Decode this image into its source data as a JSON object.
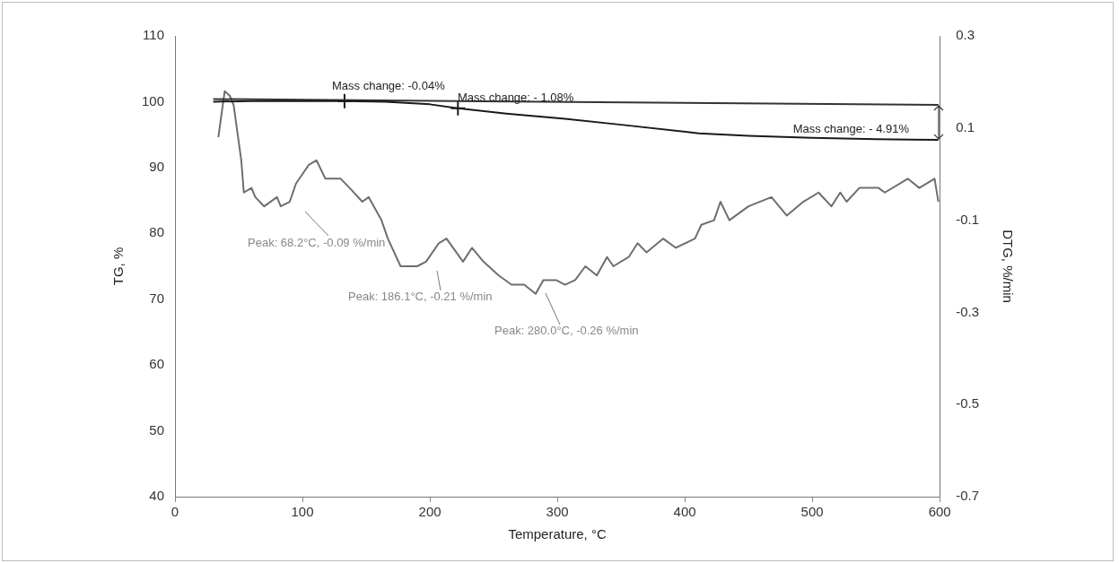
{
  "chart_data": {
    "type": "line",
    "xlabel": "Temperature, °C",
    "ylabel": "TG, %",
    "y2label": "DTG, %/min",
    "xlim": [
      0,
      600
    ],
    "xticks": [
      0,
      100,
      200,
      300,
      400,
      500,
      600
    ],
    "ylim": [
      40,
      110
    ],
    "yticks": [
      40,
      50,
      60,
      70,
      80,
      90,
      100,
      110
    ],
    "y2lim": [
      -0.7,
      0.3
    ],
    "y2ticks": [
      -0.7,
      -0.5,
      -0.3,
      -0.1,
      0.1,
      0.3
    ],
    "grid": false,
    "marker": "none",
    "line_style": "solid",
    "series": [
      {
        "color": "#1a1a1a",
        "x": [
          30,
          60,
          100,
          133,
          165,
          200,
          222,
          260,
          306,
          350,
          411,
          450,
          500,
          550,
          599
        ],
        "values": [
          100.0,
          100.1,
          100.1,
          100.1,
          100.0,
          99.6,
          99.0,
          98.2,
          97.4,
          96.5,
          95.2,
          94.8,
          94.5,
          94.3,
          94.2
        ]
      },
      {
        "color": "#333333",
        "x": [
          30,
          599
        ],
        "values": [
          100.4,
          99.5
        ]
      },
      {
        "type": "scatter",
        "marker": "cross",
        "color": "#1a1a1a",
        "x": [
          133,
          222
        ],
        "values": [
          100.1,
          99.0
        ]
      },
      {
        "axis": "y2",
        "color": "#6e6e6e",
        "x": [
          34,
          39,
          43,
          46,
          52,
          54,
          60,
          63,
          70,
          80,
          83,
          90,
          95,
          100,
          105,
          111,
          118,
          130,
          137,
          147,
          152,
          162,
          167,
          177,
          190,
          197,
          207,
          213,
          226,
          233,
          242,
          254,
          264,
          274,
          283,
          289,
          299,
          306,
          314,
          322,
          331,
          339,
          344,
          356,
          363,
          370,
          383,
          393,
          408,
          413,
          423,
          428,
          435,
          450,
          468,
          480,
          493,
          505,
          515,
          522,
          527,
          537,
          552,
          557,
          575,
          584,
          596,
          599
        ],
        "values": [
          0.08,
          0.18,
          0.17,
          0.15,
          0.03,
          -0.04,
          -0.03,
          -0.05,
          -0.07,
          -0.05,
          -0.07,
          -0.06,
          -0.02,
          0.0,
          0.02,
          0.03,
          -0.01,
          -0.01,
          -0.03,
          -0.06,
          -0.05,
          -0.1,
          -0.14,
          -0.2,
          -0.2,
          -0.19,
          -0.15,
          -0.14,
          -0.19,
          -0.16,
          -0.19,
          -0.22,
          -0.24,
          -0.24,
          -0.26,
          -0.23,
          -0.23,
          -0.24,
          -0.23,
          -0.2,
          -0.22,
          -0.18,
          -0.2,
          -0.18,
          -0.15,
          -0.17,
          -0.14,
          -0.16,
          -0.14,
          -0.11,
          -0.1,
          -0.06,
          -0.1,
          -0.07,
          -0.05,
          -0.09,
          -0.06,
          -0.04,
          -0.07,
          -0.04,
          -0.06,
          -0.03,
          -0.03,
          -0.04,
          -0.01,
          -0.03,
          -0.01,
          -0.06
        ]
      }
    ],
    "annotations": [
      "Mass change: -0.04%",
      "Mass change: - 1.08%",
      "Mass change: - 4.91%",
      "Peak: 68.2°C, -0.09 %/min",
      "Peak: 186.1°C, -0.21 %/min",
      "Peak: 280.0°C, -0.26 %/min"
    ]
  }
}
